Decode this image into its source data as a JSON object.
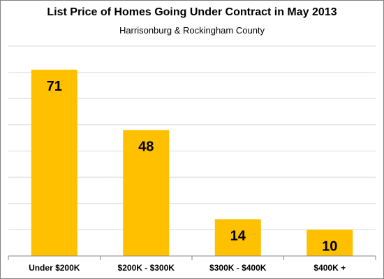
{
  "chart_data": {
    "type": "bar",
    "title": "List Price of Homes Going Under Contract in May 2013",
    "subtitle": "Harrisonburg & Rockingham County",
    "categories": [
      "Under $200K",
      "$200K - $300K",
      "$300K - $400K",
      "$400K +"
    ],
    "values": [
      71,
      48,
      14,
      10
    ],
    "xlabel": "",
    "ylabel": "",
    "ylim": [
      0,
      80
    ],
    "grid": true,
    "legend": "none",
    "bar_color": "#FFC000",
    "grid_color": "#d9d9d9",
    "data_labels": true
  }
}
